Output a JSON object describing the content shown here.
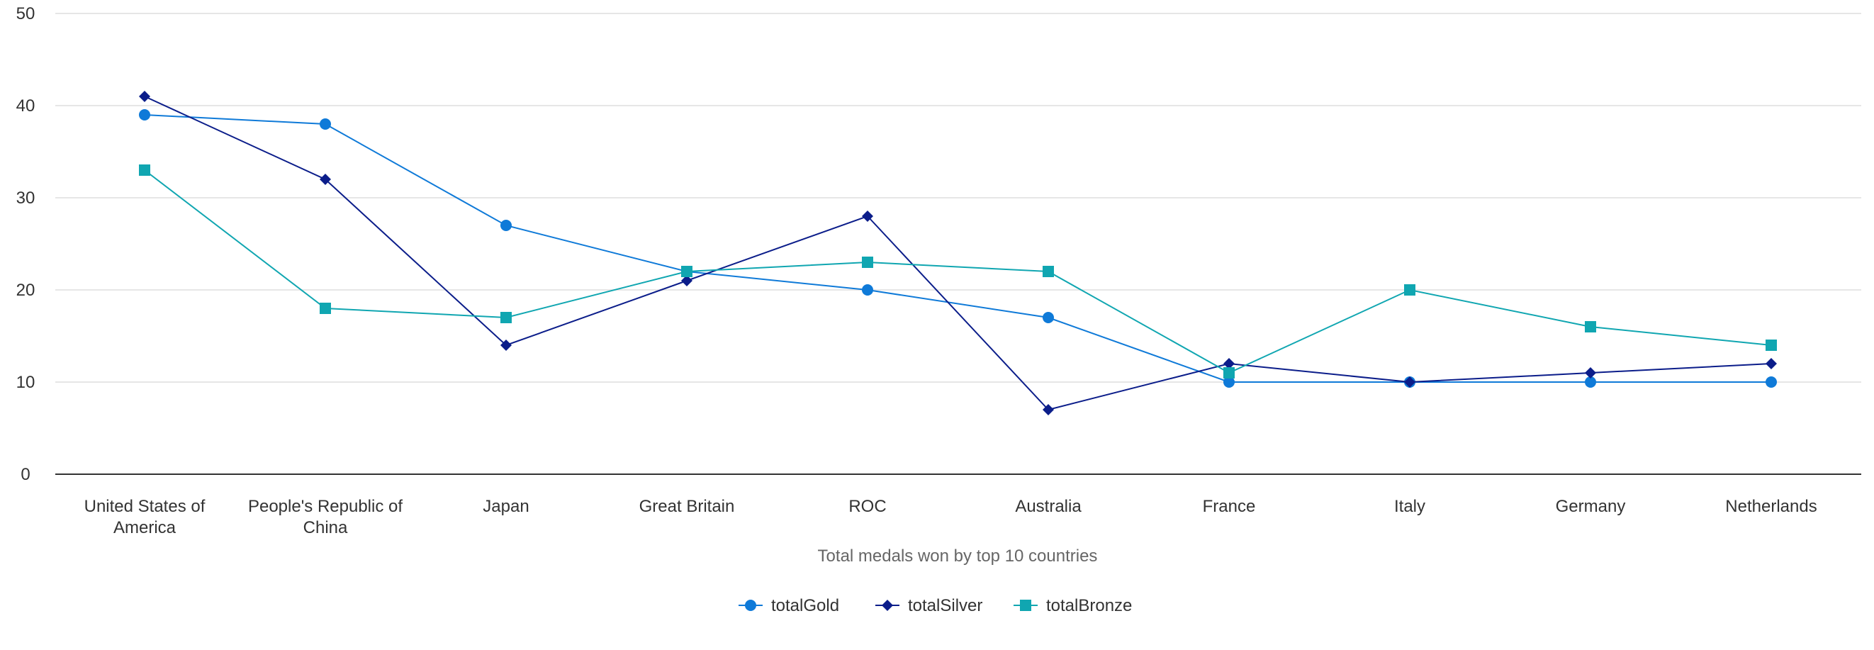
{
  "chart_data": {
    "type": "line",
    "categories": [
      [
        "United States of",
        "America"
      ],
      [
        "People's Republic of",
        "China"
      ],
      [
        "Japan"
      ],
      [
        "Great Britain"
      ],
      [
        "ROC"
      ],
      [
        "Australia"
      ],
      [
        "France"
      ],
      [
        "Italy"
      ],
      [
        "Germany"
      ],
      [
        "Netherlands"
      ]
    ],
    "series": [
      {
        "name": "totalGold",
        "color": "#0f7ad8",
        "marker": "circle",
        "values": [
          39,
          38,
          27,
          22,
          20,
          17,
          10,
          10,
          10,
          10
        ]
      },
      {
        "name": "totalSilver",
        "color": "#0b1d8a",
        "marker": "diamond",
        "values": [
          41,
          32,
          14,
          21,
          28,
          7,
          12,
          10,
          11,
          12
        ]
      },
      {
        "name": "totalBronze",
        "color": "#10a6b1",
        "marker": "square",
        "values": [
          33,
          18,
          17,
          22,
          23,
          22,
          11,
          20,
          16,
          14
        ]
      }
    ],
    "xlabel": "Total medals won by top 10 countries",
    "ylabel": "",
    "ylim": [
      0,
      50
    ],
    "yticks": [
      "0",
      "10",
      "20",
      "30",
      "40",
      "50"
    ],
    "grid": true,
    "legend": "bottom-center"
  }
}
